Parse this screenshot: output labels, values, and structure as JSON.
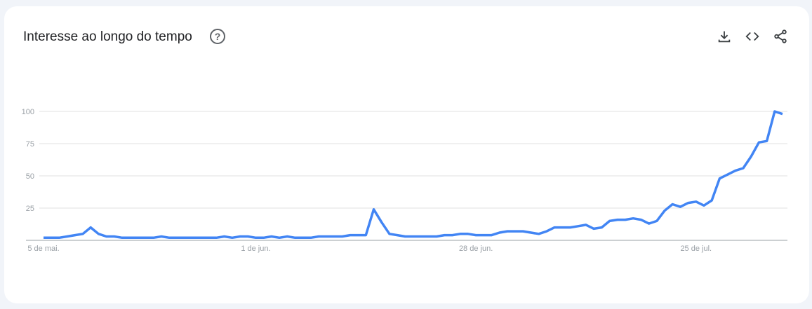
{
  "header": {
    "title": "Interesse ao longo do tempo",
    "help_icon": "help-circle-icon",
    "actions": [
      "download-icon",
      "embed-code-icon",
      "share-icon"
    ]
  },
  "colors": {
    "line": "#4285f4",
    "grid": "#e0e0e0",
    "axis": "#9aa0a6"
  },
  "chart_data": {
    "type": "line",
    "title": "Interesse ao longo do tempo",
    "ylim": [
      0,
      100
    ],
    "yticks": [
      100,
      75,
      50,
      25
    ],
    "grid": true,
    "xticks": [
      {
        "index": 0,
        "label": "5 de mai."
      },
      {
        "index": 27,
        "label": "1 de jun."
      },
      {
        "index": 55,
        "label": "28 de jun."
      },
      {
        "index": 83,
        "label": "25 de jul."
      }
    ],
    "values": [
      2,
      2,
      2,
      3,
      4,
      5,
      10,
      5,
      3,
      3,
      2,
      2,
      2,
      2,
      2,
      3,
      2,
      2,
      2,
      2,
      2,
      2,
      2,
      3,
      2,
      3,
      3,
      2,
      2,
      3,
      2,
      3,
      2,
      2,
      2,
      3,
      3,
      3,
      3,
      4,
      4,
      4,
      24,
      14,
      5,
      4,
      3,
      3,
      3,
      3,
      3,
      4,
      4,
      5,
      5,
      4,
      4,
      4,
      6,
      7,
      7,
      7,
      6,
      5,
      7,
      10,
      10,
      10,
      11,
      12,
      9,
      10,
      15,
      16,
      16,
      17,
      16,
      13,
      15,
      23,
      28,
      26,
      29,
      30,
      27,
      31,
      48,
      51,
      54,
      56,
      65,
      76,
      77,
      100,
      98
    ]
  }
}
